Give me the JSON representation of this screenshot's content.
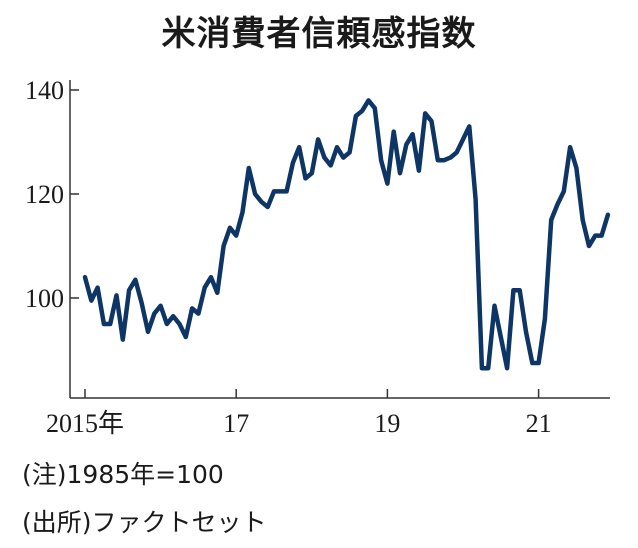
{
  "title": "米消費者信頼感指数",
  "notes": {
    "note": "(注)1985年=100",
    "source": "(出所)ファクトセット"
  },
  "chart_data": {
    "type": "line",
    "title": "米消費者信頼感指数",
    "xlabel": "",
    "ylabel": "",
    "xlim": [
      2015.0,
      2021.9
    ],
    "ylim": [
      80,
      143
    ],
    "xticks": [
      {
        "value": 2015,
        "label": "2015年"
      },
      {
        "value": 2017,
        "label": "17"
      },
      {
        "value": 2019,
        "label": "19"
      },
      {
        "value": 2021,
        "label": "21"
      }
    ],
    "yticks": [
      100,
      120,
      140
    ],
    "color": "#0d3566",
    "grid": false,
    "series": [
      {
        "x": [
          "2015-01",
          "2015-02",
          "2015-03",
          "2015-04",
          "2015-05",
          "2015-06",
          "2015-07",
          "2015-08",
          "2015-09",
          "2015-10",
          "2015-11",
          "2015-12",
          "2016-01",
          "2016-02",
          "2016-03",
          "2016-04",
          "2016-05",
          "2016-06",
          "2016-07",
          "2016-08",
          "2016-09",
          "2016-10",
          "2016-11",
          "2016-12",
          "2017-01",
          "2017-02",
          "2017-03",
          "2017-04",
          "2017-05",
          "2017-06",
          "2017-07",
          "2017-08",
          "2017-09",
          "2017-10",
          "2017-11",
          "2017-12",
          "2018-01",
          "2018-02",
          "2018-03",
          "2018-04",
          "2018-05",
          "2018-06",
          "2018-07",
          "2018-08",
          "2018-09",
          "2018-10",
          "2018-11",
          "2018-12",
          "2019-01",
          "2019-02",
          "2019-03",
          "2019-04",
          "2019-05",
          "2019-06",
          "2019-07",
          "2019-08",
          "2019-09",
          "2019-10",
          "2019-11",
          "2019-12",
          "2020-01",
          "2020-02",
          "2020-03",
          "2020-04",
          "2020-05",
          "2020-06",
          "2020-07",
          "2020-08",
          "2020-09",
          "2020-10",
          "2020-11",
          "2020-12",
          "2021-01",
          "2021-02",
          "2021-03",
          "2021-04",
          "2021-05",
          "2021-06",
          "2021-07",
          "2021-08",
          "2021-09",
          "2021-10",
          "2021-11",
          "2021-12"
        ],
        "values": [
          104,
          99.5,
          102,
          95,
          95,
          100.5,
          92,
          101.5,
          103.5,
          99,
          93.5,
          97,
          98.5,
          95,
          96.5,
          95,
          92.5,
          98,
          97,
          102,
          104,
          101,
          110,
          113.5,
          112,
          116.5,
          125,
          120,
          118.5,
          117.5,
          120.5,
          120.5,
          120.5,
          126,
          129,
          123,
          124,
          130.5,
          127,
          125.5,
          129,
          127,
          128,
          135,
          136,
          138,
          136.5,
          126.5,
          122,
          132,
          124,
          129.5,
          131.5,
          124.5,
          135.5,
          134,
          126.5,
          126.5,
          127,
          128,
          130.5,
          133,
          119,
          86.5,
          86.5,
          98.5,
          92.5,
          86.5,
          101.5,
          101.5,
          93.5,
          87.5,
          87.5,
          96,
          115,
          118,
          120.5,
          129,
          125,
          115,
          110,
          112,
          112,
          116
        ]
      }
    ]
  }
}
